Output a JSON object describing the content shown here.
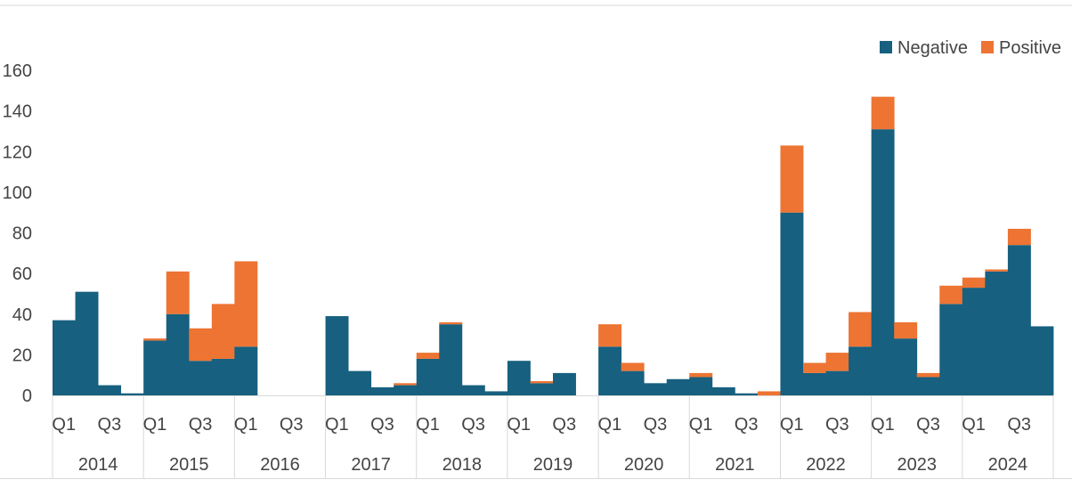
{
  "chart_data": {
    "type": "bar",
    "stacked": true,
    "title": "",
    "xlabel": "",
    "ylabel": "",
    "ylim": [
      0,
      160
    ],
    "yticks": [
      0,
      20,
      40,
      60,
      80,
      100,
      120,
      140,
      160
    ],
    "grid": false,
    "legend_position": "top-right",
    "years": [
      "2014",
      "2015",
      "2016",
      "2017",
      "2018",
      "2019",
      "2020",
      "2021",
      "2022",
      "2023",
      "2024"
    ],
    "quarter_labels": [
      "Q1",
      "",
      "Q3",
      ""
    ],
    "series": [
      {
        "name": "Negative",
        "color": "#17607f",
        "values": [
          37,
          51,
          5,
          1,
          27,
          40,
          17,
          18,
          24,
          0,
          0,
          0,
          39,
          12,
          4,
          5,
          18,
          35,
          5,
          2,
          17,
          6,
          11,
          0,
          24,
          12,
          6,
          8,
          9,
          4,
          1,
          0,
          90,
          11,
          12,
          24,
          131,
          28,
          9,
          45,
          53,
          61,
          74,
          34
        ]
      },
      {
        "name": "Positive",
        "color": "#ed7432",
        "values": [
          0,
          0,
          0,
          0,
          1,
          21,
          16,
          27,
          42,
          0,
          0,
          0,
          0,
          0,
          0,
          1,
          3,
          1,
          0,
          0,
          0,
          1,
          0,
          0,
          11,
          4,
          0,
          0,
          2,
          0,
          0,
          2,
          33,
          5,
          9,
          17,
          16,
          8,
          2,
          9,
          5,
          1,
          8,
          0
        ]
      }
    ]
  }
}
